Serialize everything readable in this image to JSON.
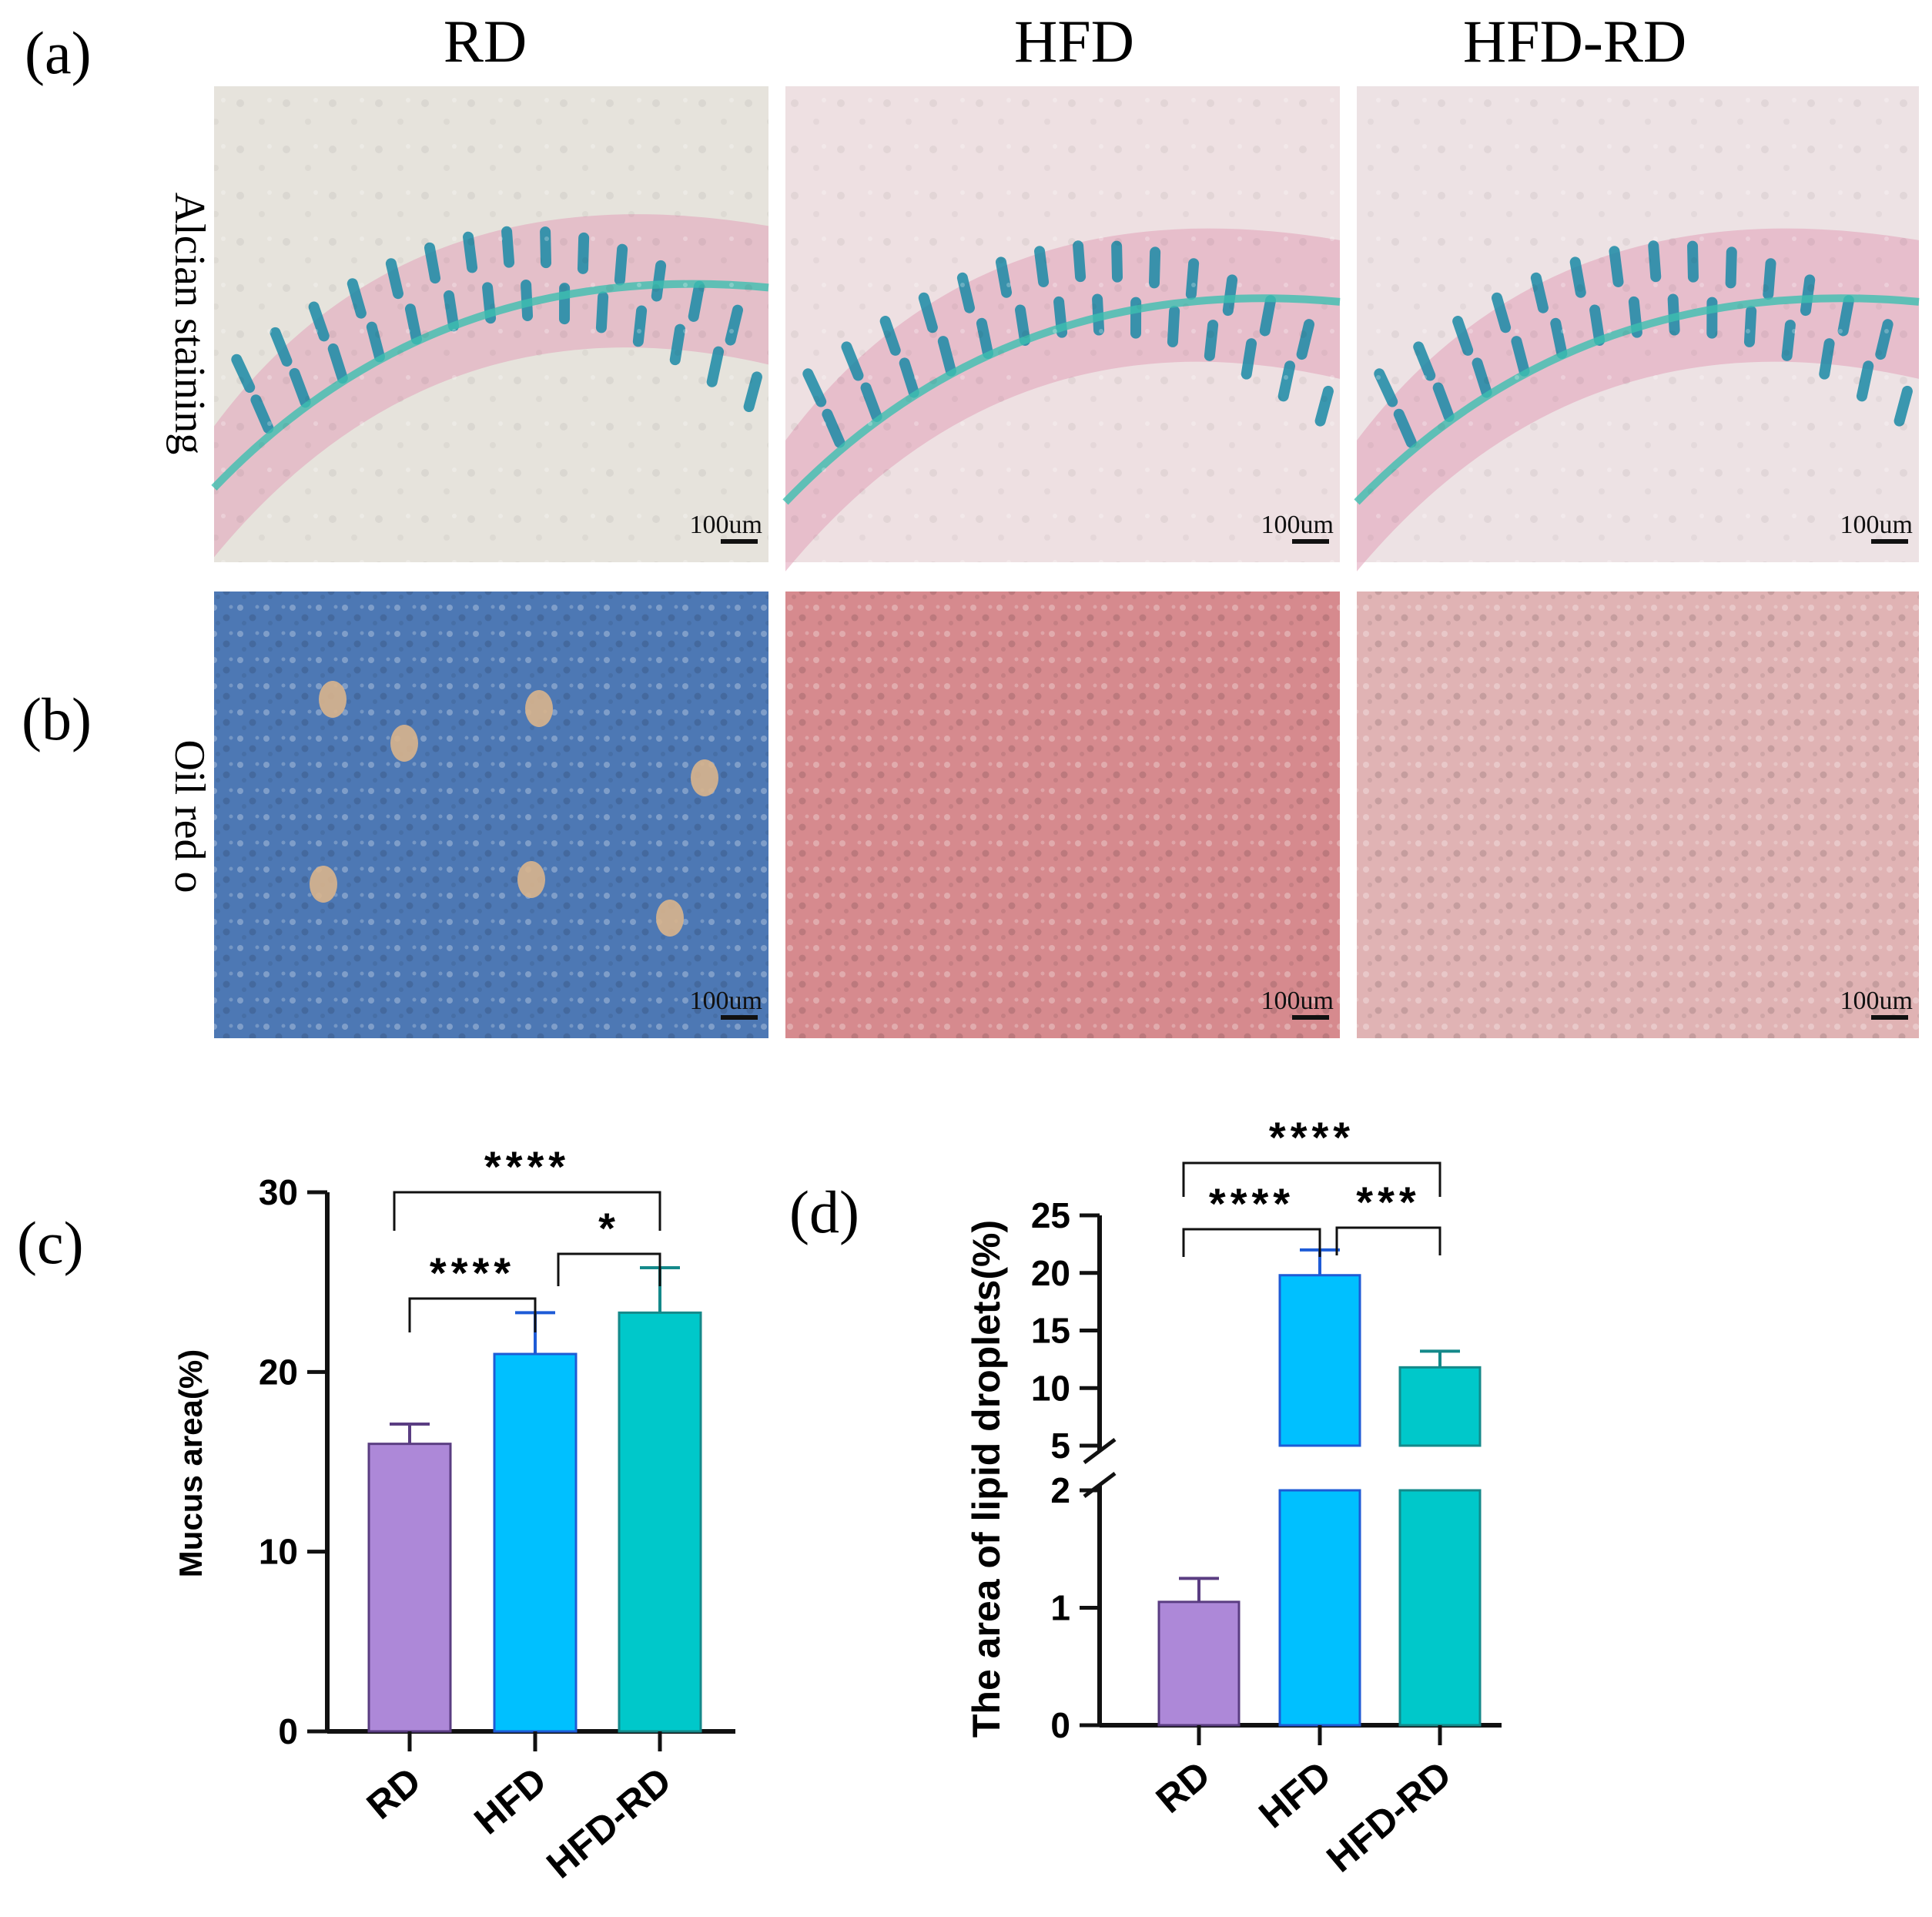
{
  "panel_labels": [
    "(a)",
    "(b)",
    "(c)",
    "(d)"
  ],
  "columns": [
    "RD",
    "HFD",
    "HFD-RD"
  ],
  "row_labels": [
    "Alcian staining",
    "Oil red o"
  ],
  "scale_bar_text": "100um",
  "micrographs": {
    "alcian": {
      "tint_colors": [
        "#e6e3dc",
        "#eee0e2",
        "#ede2e4"
      ],
      "stain_color": "#1a8aa6",
      "lumen_color": "#3dbfb0",
      "tissue_color": "#e3a7bd"
    },
    "oilred": {
      "tint_colors": [
        "#4d78b4",
        "#d68a8e",
        "#e0b3b4"
      ]
    }
  },
  "chart_data": [
    {
      "type": "bar",
      "categories": [
        "RD",
        "HFD",
        "HFD-RD"
      ],
      "values": [
        16,
        21,
        23.3
      ],
      "errors": [
        1.1,
        2.3,
        2.5
      ],
      "colors": [
        "#ad88d8",
        "#00c0ff",
        "#00c8ca"
      ],
      "edge_colors": [
        "#5a3d82",
        "#1e5bd6",
        "#14898a"
      ],
      "ylabel": "Mucus area(%)",
      "ylim": [
        0,
        30
      ],
      "yticks": [
        0,
        10,
        20,
        30
      ],
      "significance": [
        {
          "from": "RD",
          "to": "HFD",
          "label": "****"
        },
        {
          "from": "HFD",
          "to": "HFD-RD",
          "label": "*"
        },
        {
          "from": "RD",
          "to": "HFD-RD",
          "label": "****"
        }
      ]
    },
    {
      "type": "bar",
      "categories": [
        "RD",
        "HFD",
        "HFD-RD"
      ],
      "values": [
        1.05,
        19.8,
        11.8
      ],
      "errors": [
        0.2,
        2.2,
        1.4
      ],
      "colors": [
        "#ad88d8",
        "#00c0ff",
        "#00c8ca"
      ],
      "edge_colors": [
        "#5a3d82",
        "#1e5bd6",
        "#14898a"
      ],
      "ylabel": "The area of lipid droplets(%)",
      "ylim": [
        0,
        25
      ],
      "axis_break": [
        2,
        5
      ],
      "yticks_lower": [
        0,
        1,
        2
      ],
      "yticks_upper": [
        5,
        10,
        15,
        20,
        25
      ],
      "significance": [
        {
          "from": "RD",
          "to": "HFD",
          "label": "****"
        },
        {
          "from": "HFD",
          "to": "HFD-RD",
          "label": "***"
        },
        {
          "from": "RD",
          "to": "HFD-RD",
          "label": "****"
        }
      ]
    }
  ]
}
